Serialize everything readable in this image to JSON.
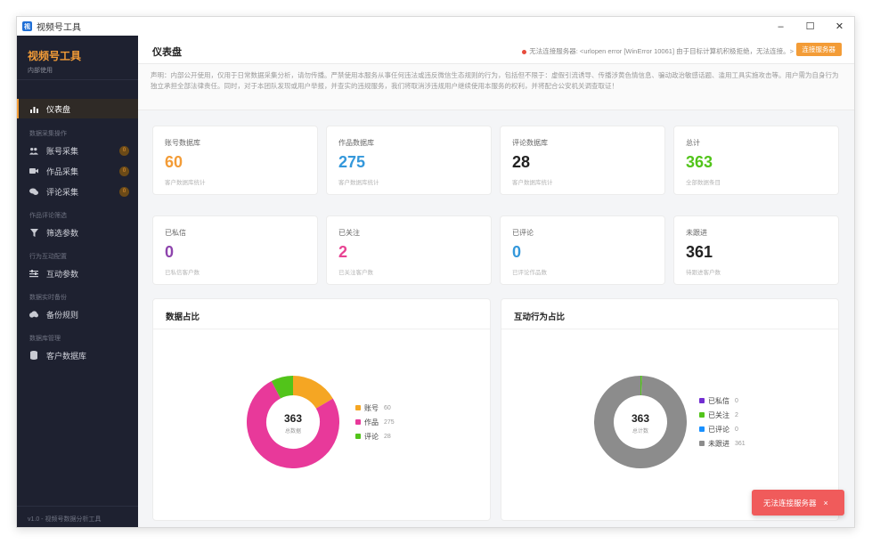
{
  "window": {
    "title": "视频号工具",
    "icon": "app-icon",
    "min": "–",
    "max": "☐",
    "close": "✕"
  },
  "sidebar": {
    "brand_title": "视频号工具",
    "brand_sub": "内部使用",
    "dashboard": "仪表盘",
    "groups": [
      "数据采集操作",
      "作品评论筛选",
      "行为互动配置",
      "数据实时备份",
      "数据库管理"
    ],
    "items": [
      {
        "label": "账号采集",
        "badge": "0",
        "icon": "users-icon"
      },
      {
        "label": "作品采集",
        "badge": "0",
        "icon": "video-icon"
      },
      {
        "label": "评论采集",
        "badge": "0",
        "icon": "comment-icon"
      },
      {
        "label": "筛选参数",
        "icon": "filter-icon"
      },
      {
        "label": "互动参数",
        "icon": "sliders-icon"
      },
      {
        "label": "备份规则",
        "icon": "cloud-icon"
      },
      {
        "label": "客户数据库",
        "icon": "database-icon"
      }
    ],
    "footer": "v1.0 - 视频号数据分析工具"
  },
  "header": {
    "title": "仪表盘",
    "status": "无法连接服务器: <urlopen error [WinError 10061] 由于目标计算机积极拒绝，无法连接。>",
    "connect_button": "连接服务器"
  },
  "disclaimer": "声明：内部公开使用，仅用于日常数据采集分析，请勿传播。严禁使用本服务从事任何违法或违反微信生态规则的行为，包括但不限于：虚假引流诱导、传播涉黄色情信息、骗动政治敏感话题、滥用工具实施攻击等。用户需为自身行为独立承担全部法律责任。同时，对于本团队发现或用户举报，并查实的违规服务，我们将取消涉违规用户继续使用本服务的权利，并将配合公安机关调查取证！",
  "stats": [
    {
      "label": "账号数据库",
      "value": "60",
      "sub": "客户数据库统计",
      "color": "#f39c37"
    },
    {
      "label": "作品数据库",
      "value": "275",
      "sub": "客户数据库统计",
      "color": "#3498db"
    },
    {
      "label": "评论数据库",
      "value": "28",
      "sub": "客户数据库统计",
      "color": "#222222"
    },
    {
      "label": "总计",
      "value": "363",
      "sub": "全部数据条目",
      "color": "#52c41a"
    },
    {
      "label": "已私信",
      "value": "0",
      "sub": "已私信客户数",
      "color": "#8e44ad"
    },
    {
      "label": "已关注",
      "value": "2",
      "sub": "已关注客户数",
      "color": "#e84393"
    },
    {
      "label": "已评论",
      "value": "0",
      "sub": "已评论作品数",
      "color": "#3498db"
    },
    {
      "label": "未跟进",
      "value": "361",
      "sub": "待跟进客户数",
      "color": "#222222"
    }
  ],
  "chart_data": [
    {
      "type": "pie",
      "title": "数据占比",
      "center_value": "363",
      "center_label": "总数据",
      "categories": [
        "账号",
        "作品",
        "评论"
      ],
      "values": [
        60,
        275,
        28
      ],
      "colors": [
        "#f5a623",
        "#e8399a",
        "#52c41a"
      ]
    },
    {
      "type": "pie",
      "title": "互动行为占比",
      "center_value": "363",
      "center_label": "总计数",
      "categories": [
        "已私信",
        "已关注",
        "已评论",
        "未跟进"
      ],
      "values": [
        0,
        2,
        0,
        361
      ],
      "colors": [
        "#722ed1",
        "#52c41a",
        "#1890ff",
        "#8c8c8c"
      ]
    }
  ],
  "toast": {
    "message": "无法连接服务器",
    "close": "×"
  }
}
